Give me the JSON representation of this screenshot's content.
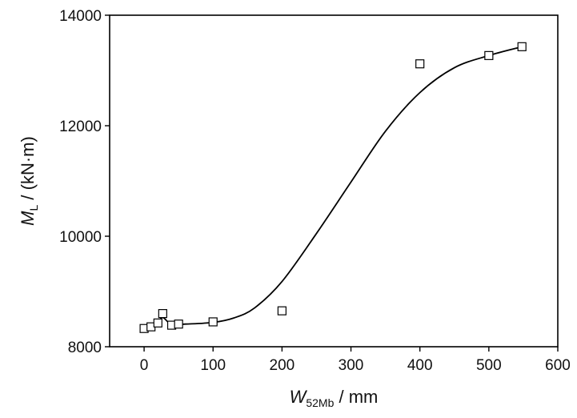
{
  "chart_data": {
    "type": "scatter",
    "x_label_parts": {
      "main": "W",
      "sub": "52Mb",
      "unit": " / mm"
    },
    "y_label_parts": {
      "main": "M",
      "sub": "L",
      "unit": " / (kN·m)"
    },
    "xlim": [
      -50,
      600
    ],
    "ylim": [
      8000,
      14000
    ],
    "x_ticks": [
      0,
      100,
      200,
      300,
      400,
      500,
      600
    ],
    "y_ticks": [
      8000,
      10000,
      12000,
      14000
    ],
    "grid": false,
    "legend": "none",
    "series": [
      {
        "marker": "open-square",
        "points": [
          {
            "x": 0,
            "y": 8330
          },
          {
            "x": 10,
            "y": 8360
          },
          {
            "x": 20,
            "y": 8430
          },
          {
            "x": 27,
            "y": 8600
          },
          {
            "x": 40,
            "y": 8390
          },
          {
            "x": 50,
            "y": 8410
          },
          {
            "x": 100,
            "y": 8450
          },
          {
            "x": 200,
            "y": 8650
          },
          {
            "x": 400,
            "y": 13120
          },
          {
            "x": 500,
            "y": 13270
          },
          {
            "x": 548,
            "y": 13430
          }
        ]
      }
    ],
    "fit_curve": {
      "style": "solid",
      "color": "#000000",
      "points": [
        {
          "x": 0,
          "y": 8330
        },
        {
          "x": 10,
          "y": 8360
        },
        {
          "x": 20,
          "y": 8430
        },
        {
          "x": 27,
          "y": 8530
        },
        {
          "x": 40,
          "y": 8400
        },
        {
          "x": 60,
          "y": 8410
        },
        {
          "x": 100,
          "y": 8440
        },
        {
          "x": 130,
          "y": 8520
        },
        {
          "x": 160,
          "y": 8700
        },
        {
          "x": 200,
          "y": 9180
        },
        {
          "x": 250,
          "y": 10050
        },
        {
          "x": 300,
          "y": 10980
        },
        {
          "x": 350,
          "y": 11900
        },
        {
          "x": 400,
          "y": 12600
        },
        {
          "x": 450,
          "y": 13050
        },
        {
          "x": 500,
          "y": 13270
        },
        {
          "x": 548,
          "y": 13430
        }
      ]
    }
  }
}
